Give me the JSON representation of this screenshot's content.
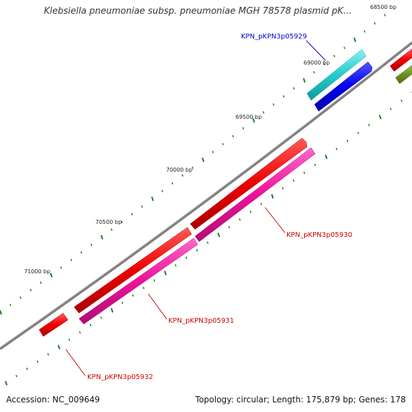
{
  "title": "Klebsiella pneumoniae subsp. pneumoniae MGH 78578 plasmid pK...",
  "accession": "Accession: NC_009649",
  "summary": "Topology: circular; Length: 175,879 bp; Genes: 178",
  "ticks": [
    "68500 bp",
    "69000 bp",
    "69500 bp",
    "70000 bp",
    "70500 bp",
    "71000 bp"
  ],
  "genes": [
    {
      "label": "KPN_pKPN3p05929",
      "color": "#0000cc"
    },
    {
      "label": "KPN_pKPN3p05930",
      "color": "#cc0000"
    },
    {
      "label": "KPN_pKPN3p05931",
      "color": "#cc0000"
    },
    {
      "label": "KPN_pKPN3p05932",
      "color": "#cc0000"
    }
  ],
  "colors": {
    "backbone": "#7f7f7f",
    "cds_red": "#ee0000",
    "cds_magenta": "#ee1199",
    "cds_cyan": "#22cccc",
    "cds_blue": "#0000ee",
    "cds_olive": "#6f8f1f",
    "tick": "#1a7a1a"
  }
}
